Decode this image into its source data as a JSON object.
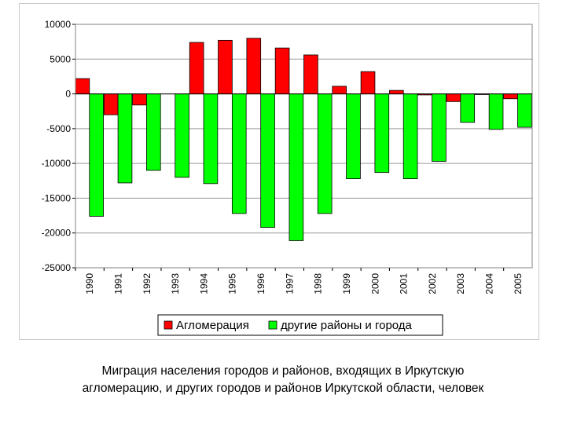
{
  "chart_data": {
    "type": "bar",
    "title": "",
    "xlabel": "",
    "ylabel": "",
    "categories": [
      "1990",
      "1991",
      "1992",
      "1993",
      "1994",
      "1995",
      "1996",
      "1997",
      "1998",
      "1999",
      "2000",
      "2001",
      "2002",
      "2003",
      "2004",
      "2005"
    ],
    "series": [
      {
        "name": "Агломерация",
        "color": "#ff0000",
        "values": [
          2200,
          -3000,
          -1600,
          0,
          7400,
          7700,
          8000,
          6600,
          5600,
          1100,
          3200,
          500,
          -150,
          -1100,
          -100,
          -700
        ]
      },
      {
        "name": "другие районы и города",
        "color": "#00ff00",
        "values": [
          -17600,
          -12800,
          -11000,
          -12000,
          -12900,
          -17200,
          -19200,
          -21100,
          -17200,
          -12200,
          -11300,
          -12200,
          -9700,
          -4100,
          -5100,
          -4800
        ]
      }
    ],
    "ylim": [
      -25000,
      10000
    ],
    "yticks": [
      10000,
      5000,
      0,
      -5000,
      -10000,
      -15000,
      -20000,
      -25000
    ],
    "grid": true,
    "legend_position": "bottom"
  },
  "caption": {
    "line1": "Миграция населения городов и районов, входящих в Иркутскую",
    "line2": "агломерацию, и других городов и районов Иркутской области, человек"
  }
}
